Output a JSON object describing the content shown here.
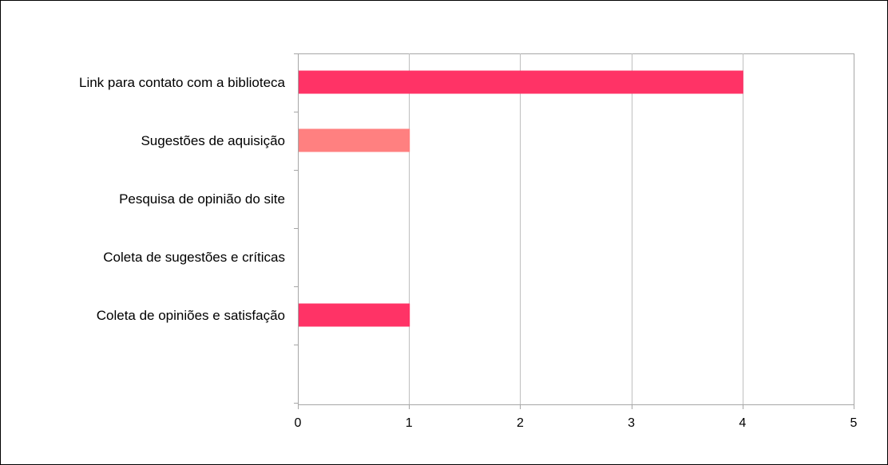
{
  "chart_data": {
    "type": "bar",
    "orientation": "horizontal",
    "title": "",
    "xlabel": "",
    "ylabel": "",
    "categories": [
      "Link para contato com a biblioteca",
      "Sugestões de aquisição",
      "Pesquisa de opinião do site",
      "Coleta de sugestões e críticas",
      "Coleta de opiniões e satisfação"
    ],
    "values": [
      4,
      1,
      0,
      0,
      1
    ],
    "bar_colors": [
      "#ff3366",
      "#ff8080",
      "#ff3366",
      "#ff3366",
      "#ff3366"
    ],
    "xlim": [
      0,
      5
    ],
    "xticks": [
      "0",
      "1",
      "2",
      "3",
      "4",
      "5"
    ],
    "grid": "vertical",
    "legend": "none"
  }
}
